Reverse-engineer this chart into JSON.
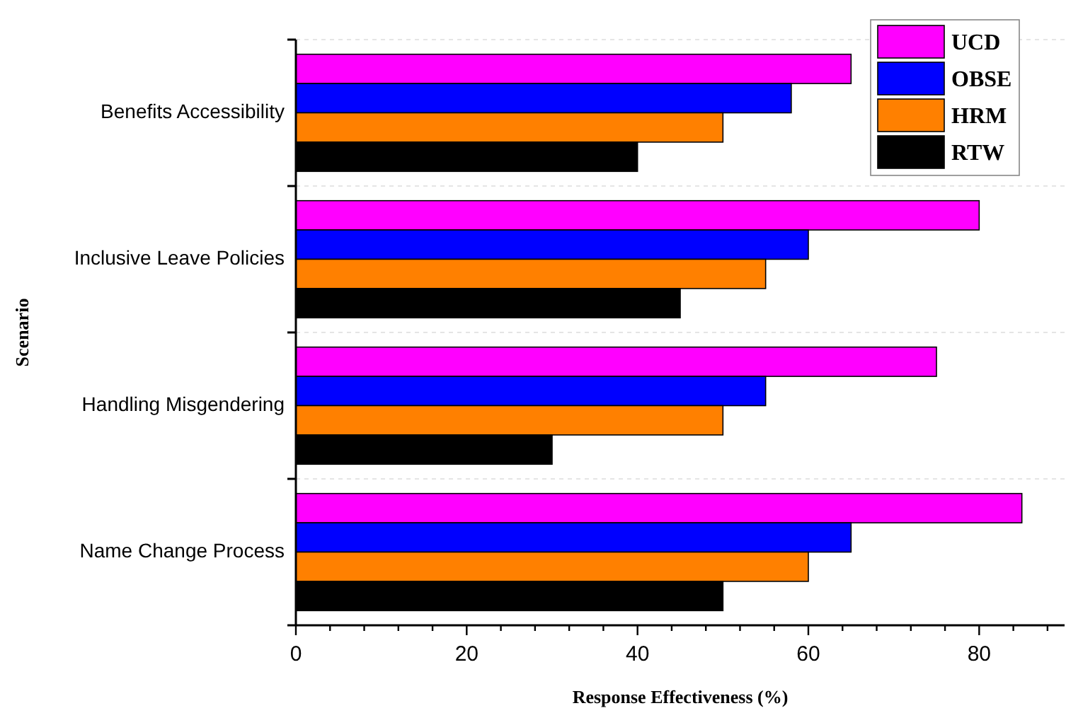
{
  "chart_data": {
    "type": "bar",
    "orientation": "horizontal",
    "xlabel": "Response Effectiveness (%)",
    "ylabel": "Scenario",
    "categories": [
      "Benefits Accessibility",
      "Inclusive Leave Policies",
      "Handling Misgendering",
      "Name Change Process"
    ],
    "series": [
      {
        "name": "UCD",
        "color": "#ff00ff",
        "values": [
          65,
          80,
          75,
          85
        ]
      },
      {
        "name": "OBSE",
        "color": "#0000ff",
        "values": [
          58,
          60,
          55,
          65
        ]
      },
      {
        "name": "HRM",
        "color": "#ff8000",
        "values": [
          50,
          55,
          50,
          60
        ]
      },
      {
        "name": "RTW",
        "color": "#000000",
        "values": [
          40,
          45,
          30,
          50
        ]
      }
    ],
    "xlim": [
      0,
      90
    ],
    "xticks": [
      0,
      {
        "value": 4,
        "label": null
      },
      {
        "value": 8,
        "label": null
      },
      {
        "value": 12,
        "label": null
      },
      {
        "value": 16,
        "label": null
      },
      20,
      {
        "value": 24,
        "label": null
      },
      {
        "value": 28,
        "label": null
      },
      {
        "value": 32,
        "label": null
      },
      {
        "value": 36,
        "label": null
      },
      40,
      {
        "value": 44,
        "label": null
      },
      {
        "value": 48,
        "label": null
      },
      {
        "value": 52,
        "label": null
      },
      {
        "value": 56,
        "label": null
      },
      60,
      {
        "value": 64,
        "label": null
      },
      {
        "value": 68,
        "label": null
      },
      {
        "value": 72,
        "label": null
      },
      {
        "value": 76,
        "label": null
      },
      80,
      {
        "value": 84,
        "label": null
      },
      {
        "value": 88,
        "label": null
      }
    ],
    "grid": "y",
    "legend": "top right"
  }
}
